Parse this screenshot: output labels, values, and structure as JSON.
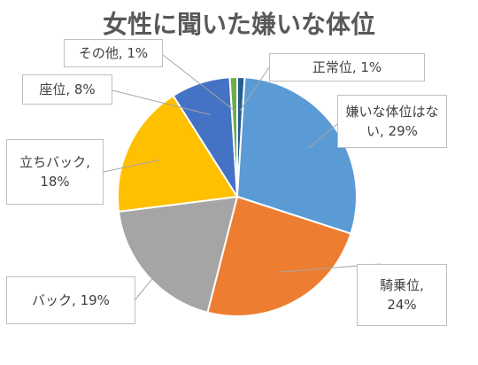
{
  "chart_data": {
    "type": "pie",
    "title": "女性に聞いた嫌いな体位",
    "categories": [
      "正常位",
      "嫌いな体位はない",
      "騎乗位",
      "バック",
      "立ちバック",
      "座位",
      "その他"
    ],
    "values": [
      1,
      29,
      24,
      19,
      18,
      8,
      1
    ],
    "colors": [
      "#255E91",
      "#5B9BD5",
      "#ED7D31",
      "#A5A5A5",
      "#FFC000",
      "#4472C4",
      "#70AD47"
    ],
    "labels": [
      "正常位, 1%",
      "嫌いな体位はない, 29%",
      "騎乗位, 24%",
      "バック, 19%",
      "立ちバック, 18%",
      "座位, 8%",
      "その他, 1%"
    ],
    "start_angle": "12 o'clock, clockwise",
    "legend": "none"
  }
}
